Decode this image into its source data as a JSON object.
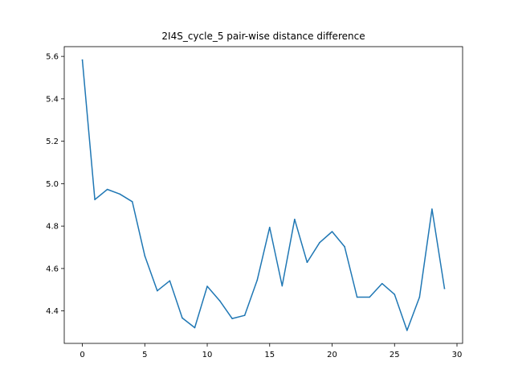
{
  "chart_data": {
    "type": "line",
    "title": "2I4S_cycle_5 pair-wise distance difference",
    "xlabel": "",
    "ylabel": "",
    "xlim": [
      -1.45,
      30.45
    ],
    "ylim": [
      4.247,
      5.646
    ],
    "xticks": [
      0,
      5,
      10,
      15,
      20,
      25,
      30
    ],
    "yticks": [
      4.4,
      4.6,
      4.8,
      5.0,
      5.2,
      5.4,
      5.6
    ],
    "xtick_labels": [
      "0",
      "5",
      "10",
      "15",
      "20",
      "25",
      "30"
    ],
    "ytick_labels": [
      "4.4",
      "4.6",
      "4.8",
      "5.0",
      "5.2",
      "5.4",
      "5.6"
    ],
    "grid": false,
    "legend": "none",
    "series": [
      {
        "color": "#1f77b4",
        "x": [
          0,
          1,
          2,
          3,
          4,
          5,
          6,
          7,
          8,
          9,
          10,
          11,
          12,
          13,
          14,
          15,
          16,
          17,
          18,
          19,
          20,
          21,
          22,
          23,
          24,
          25,
          26,
          27,
          28,
          29
        ],
        "y": [
          5.583,
          4.925,
          4.973,
          4.951,
          4.915,
          4.66,
          4.495,
          4.542,
          4.367,
          4.321,
          4.516,
          4.448,
          4.364,
          4.379,
          4.545,
          4.794,
          4.518,
          4.832,
          4.629,
          4.722,
          4.774,
          4.703,
          4.465,
          4.465,
          4.529,
          4.478,
          4.308,
          4.465,
          4.88,
          4.506
        ]
      }
    ]
  }
}
